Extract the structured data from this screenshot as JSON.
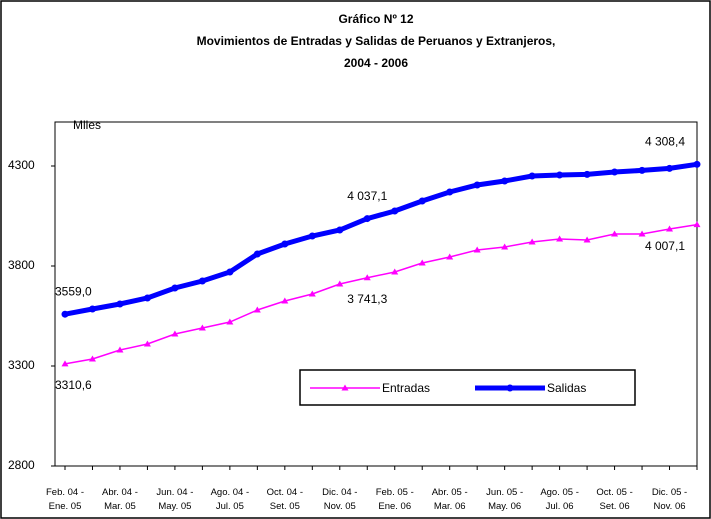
{
  "chart_data": {
    "type": "line",
    "title_lines": [
      "Gráfico Nº 12",
      "Movimientos de Entradas y Salidas de Peruanos y  Extranjeros,",
      "2004 - 2006"
    ],
    "y_label": "Miles",
    "categories": [
      "Feb. 04 -\nEne. 05",
      null,
      "Abr. 04 -\nMar. 05",
      null,
      "Jun. 04 -\nMay. 05",
      null,
      "Ago. 04 -\nJul. 05",
      null,
      "Oct. 04 -\nSet. 05",
      null,
      "Dic. 04 -\nNov. 05",
      null,
      "Feb. 05 -\nEne. 06",
      null,
      "Abr. 05 -\nMar. 06",
      null,
      "Jun. 05 -\nMay. 06",
      null,
      "Ago. 05 -\nJul. 06",
      null,
      "Oct. 05 -\nSet. 06",
      null,
      "Dic. 05 -\nNov. 06",
      null
    ],
    "series": [
      {
        "name": "Entradas",
        "color": "#ff00ff",
        "marker": "triangle",
        "values": [
          3310.6,
          3335,
          3380,
          3410,
          3460,
          3490,
          3520,
          3580,
          3625,
          3660,
          3710,
          3741.3,
          3770,
          3815,
          3845,
          3880,
          3895,
          3920,
          3935,
          3930,
          3960,
          3960,
          3985,
          4007.1
        ],
        "value_labels": [
          "3310,6",
          null,
          null,
          null,
          null,
          null,
          null,
          null,
          null,
          null,
          null,
          "3 741,3",
          null,
          null,
          null,
          null,
          null,
          null,
          null,
          null,
          null,
          null,
          null,
          "4 007,1"
        ]
      },
      {
        "name": "Salidas",
        "color": "#0000ff",
        "marker": "circle",
        "values": [
          3559.0,
          3585,
          3610,
          3640,
          3690,
          3725,
          3770,
          3860,
          3910,
          3950,
          3980,
          4037.1,
          4075,
          4125,
          4170,
          4205,
          4225,
          4250,
          4255,
          4258,
          4270,
          4278,
          4288,
          4308.4
        ],
        "value_labels": [
          "3559,0",
          null,
          null,
          null,
          null,
          null,
          null,
          null,
          null,
          null,
          null,
          "4 037,1",
          null,
          null,
          null,
          null,
          null,
          null,
          null,
          null,
          null,
          null,
          null,
          "4 308,4"
        ]
      }
    ],
    "ylim": [
      2800,
      4520
    ],
    "yticks": [
      2800,
      3300,
      3800,
      4300
    ],
    "grid": false
  }
}
